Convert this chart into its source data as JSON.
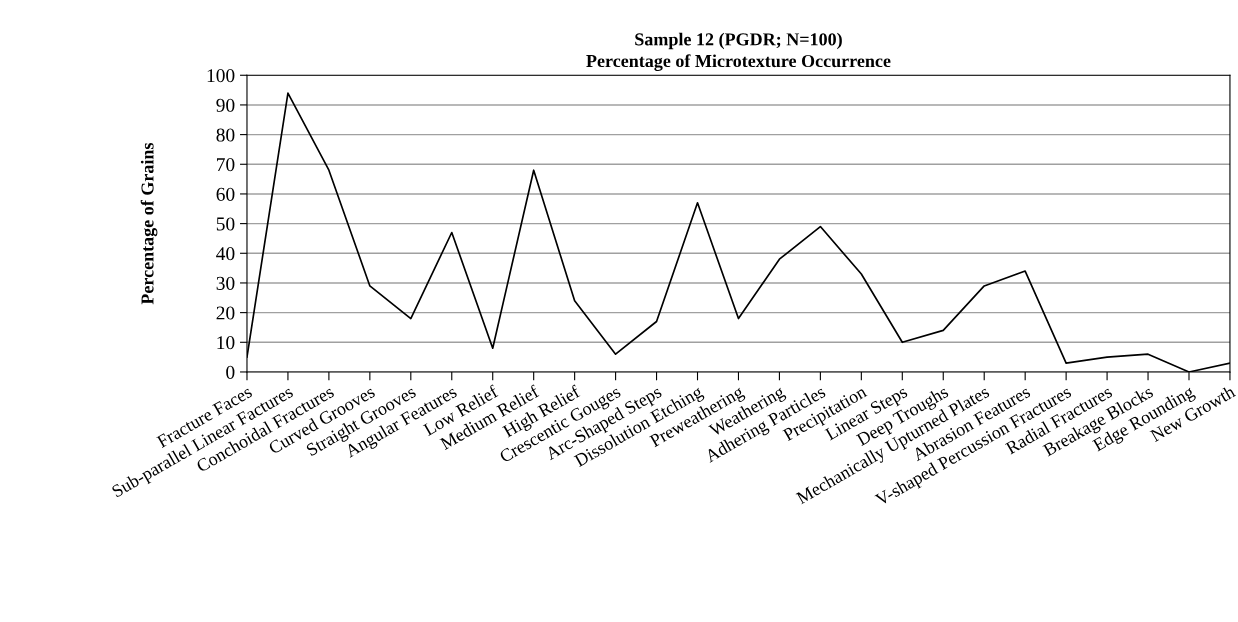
{
  "chart_data": {
    "type": "line",
    "title": "Sample 12 (PGDR; N=100)\nPercentage of Microtexture Occurrence",
    "ylabel": "Percentage of Grains",
    "categories": [
      "Fracture Faces",
      "Sub-parallel Linear Factures",
      "Conchoidal Fractures",
      "Curved Grooves",
      "Straight Grooves",
      "Angular Features",
      "Low Relief",
      "Medium Relief",
      "High Relief",
      "Crescentic Gouges",
      "Arc-Shaped Steps",
      "Dissolution Etching",
      "Preweathering",
      "Weathering",
      "Adhering Particles",
      "Precipitation",
      "Linear Steps",
      "Deep Troughs",
      "Mechanically Upturned Plates",
      "Abrasion Features",
      "V-shaped Percussion Fractures",
      "Radial Fractures",
      "Breakage Blocks",
      "Edge Rounding",
      "New Growth"
    ],
    "series": [
      {
        "color": "#000000",
        "values": [
          5,
          94,
          68,
          29,
          18,
          47,
          8,
          68,
          24,
          6,
          17,
          57,
          18,
          38,
          49,
          33,
          10,
          14,
          29,
          34,
          3,
          5,
          6,
          0,
          3
        ]
      }
    ],
    "ylim": [
      0,
      100
    ],
    "yticks": [
      0,
      10,
      20,
      30,
      40,
      50,
      60,
      70,
      80,
      90,
      100
    ],
    "grid": "y",
    "legend": false,
    "marker": "none",
    "line_style": "solid"
  }
}
